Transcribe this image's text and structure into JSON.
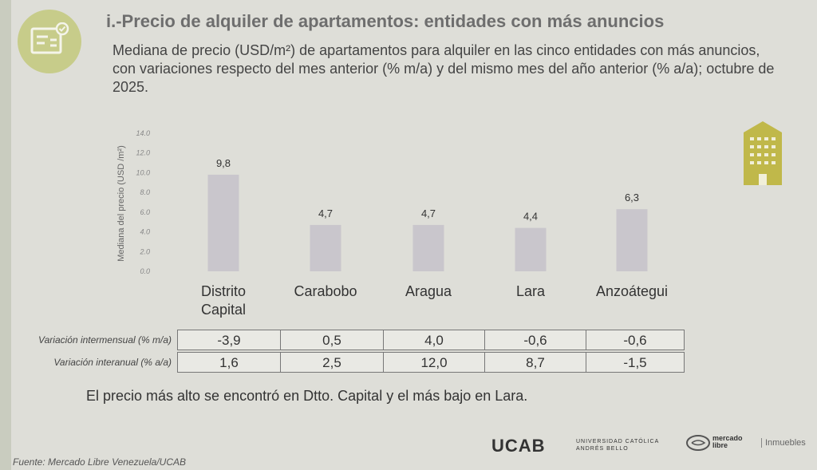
{
  "title": "i.-Precio de alquiler de apartamentos: entidades con más anuncios",
  "subtitle": "Mediana de precio (USD/m²) de apartamentos para alquiler en las cinco entidades con más anuncios, con variaciones respecto del mes anterior (% m/a) y del mismo mes del año anterior (% a/a); octubre de 2025.",
  "chart_data": {
    "type": "bar",
    "ylabel": "Mediana del precio (USD /m²)",
    "ylim": [
      0,
      14
    ],
    "yticks": [
      "0.0",
      "2.0",
      "4.0",
      "6.0",
      "8.0",
      "10.0",
      "12.0",
      "14.0"
    ],
    "categories": [
      "Distrito Capital",
      "Carabobo",
      "Aragua",
      "Lara",
      "Anzoátegui"
    ],
    "values": [
      9.8,
      4.7,
      4.7,
      4.4,
      6.3
    ],
    "value_labels": [
      "9,8",
      "4,7",
      "4,7",
      "4,4",
      "6,3"
    ],
    "bar_color": "#c9c6cc",
    "grid": false
  },
  "table": {
    "rows": [
      {
        "label": "Variación intermensual (% m/a)",
        "values": [
          "-3,9",
          "0,5",
          "4,0",
          "-0,6",
          "-0,6"
        ]
      },
      {
        "label": "Variación interanual (% a/a)",
        "values": [
          "1,6",
          "2,5",
          "12,0",
          "8,7",
          "-1,5"
        ]
      }
    ]
  },
  "conclusion": "El precio más alto se encontró en Dtto. Capital y el más bajo en Lara.",
  "source": "Fuente: Mercado Libre Venezuela/UCAB",
  "logos": {
    "ucab": "UCAB",
    "ucab_line1": "UNIVERSIDAD CATÓLICA",
    "ucab_line2": "ANDRÉS BELLO",
    "ml_line1": "mercado",
    "ml_line2": "libre",
    "inmuebles": "Inmuebles"
  },
  "icons": [
    "document-check-icon",
    "building-icon"
  ],
  "colors": {
    "accent": "#c7cc8a",
    "building": "#c0b84a"
  }
}
